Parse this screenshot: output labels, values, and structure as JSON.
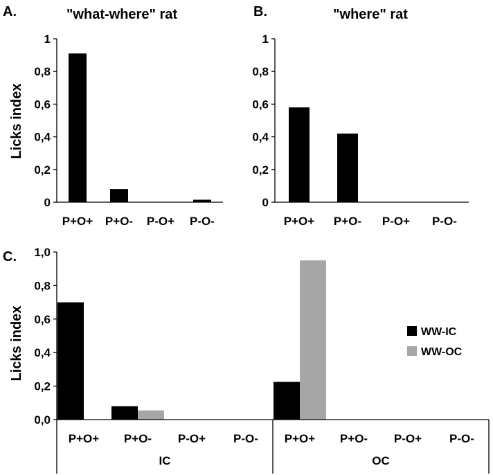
{
  "chart_data": [
    {
      "type": "bar",
      "panel_label": "A.",
      "title": "\"what-where\" rat",
      "ylabel": "Licks index",
      "categories": [
        "P+O+",
        "P+O-",
        "P-O+",
        "P-O-"
      ],
      "values": [
        0.91,
        0.08,
        0.0,
        0.015
      ],
      "ylim": [
        0,
        1
      ],
      "yticks": [
        "0",
        "0,2",
        "0,4",
        "0,6",
        "0,8",
        "1"
      ],
      "color": "#000000",
      "grid": false
    },
    {
      "type": "bar",
      "panel_label": "B.",
      "title": "\"where\" rat",
      "ylabel": "",
      "categories": [
        "P+O+",
        "P+O-",
        "P-O+",
        "P-O-"
      ],
      "values": [
        0.58,
        0.42,
        0.0,
        0.0
      ],
      "ylim": [
        0,
        1
      ],
      "yticks": [
        "0",
        "0,2",
        "0,4",
        "0,6",
        "0,8",
        "1"
      ],
      "color": "#000000",
      "grid": false
    },
    {
      "type": "bar",
      "panel_label": "C.",
      "title": "",
      "ylabel": "Licks index",
      "categories": [
        "P+O+",
        "P+O-",
        "P-O+",
        "P-O-",
        "P+O+",
        "P+O-",
        "P-O+",
        "P-O-"
      ],
      "groups": [
        {
          "label": "IC",
          "categories": [
            0,
            1,
            2,
            3
          ]
        },
        {
          "label": "OC",
          "categories": [
            4,
            5,
            6,
            7
          ]
        }
      ],
      "series": [
        {
          "name": "WW-IC",
          "color": "#000000",
          "values": [
            0.7,
            0.08,
            0.0,
            0.0,
            0.225,
            0.0,
            0.0,
            0.0
          ]
        },
        {
          "name": "WW-OC",
          "color": "#a6a6a6",
          "values": [
            null,
            0.055,
            0.0,
            0.0,
            0.95,
            0.0,
            0.0,
            0.0
          ]
        }
      ],
      "ylim": [
        0,
        1
      ],
      "yticks": [
        "0,0",
        "0,2",
        "0,4",
        "0,6",
        "0,8",
        "1,0"
      ],
      "legend_position": "right",
      "grid": false
    }
  ]
}
